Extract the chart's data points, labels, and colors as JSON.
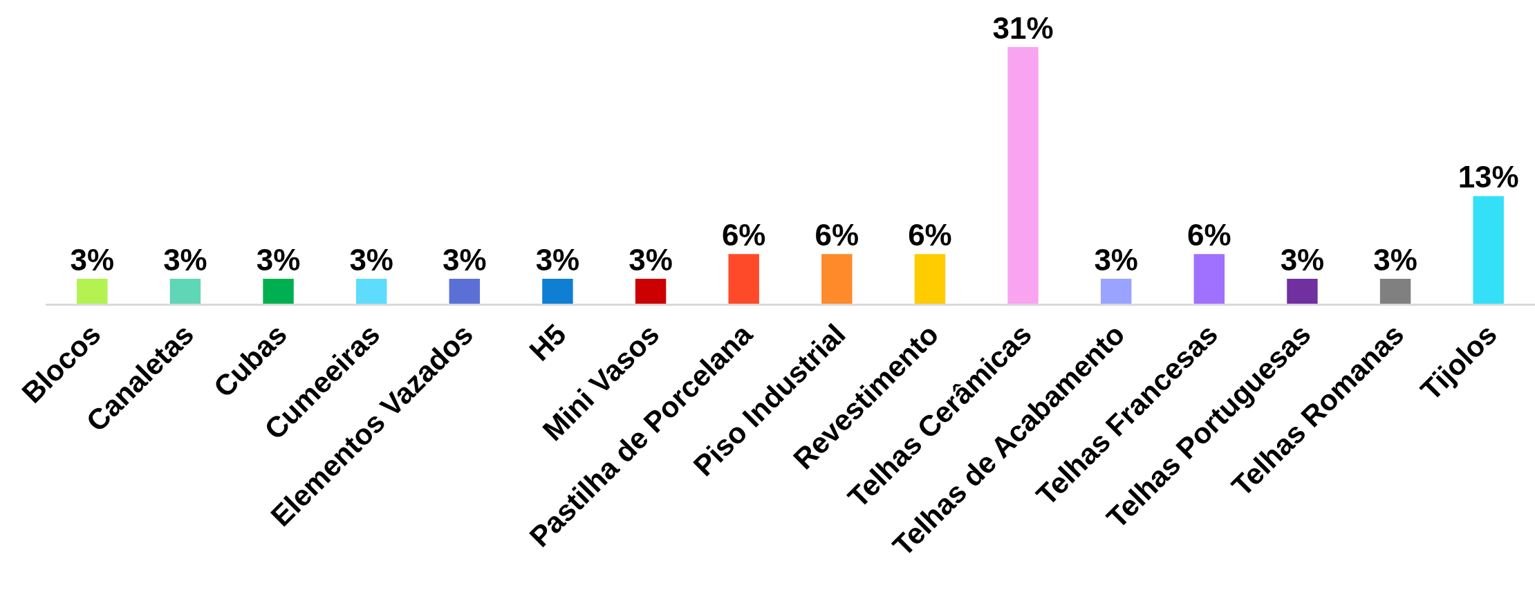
{
  "chart_data": {
    "type": "bar",
    "categories": [
      "Blocos",
      "Canaletas",
      "Cubas",
      "Cumeeiras",
      "Elementos Vazados",
      "H5",
      "Mini Vasos",
      "Pastilha de Porcelana",
      "Piso Industrial",
      "Revestimento",
      "Telhas Cerâmicas",
      "Telhas de Acabamento",
      "Telhas Francesas",
      "Telhas Portuguesas",
      "Telhas Romanas",
      "Tijolos"
    ],
    "values": [
      3,
      3,
      3,
      3,
      3,
      3,
      3,
      6,
      6,
      6,
      31,
      3,
      6,
      3,
      3,
      13
    ],
    "value_labels": [
      "3%",
      "3%",
      "3%",
      "3%",
      "3%",
      "3%",
      "3%",
      "6%",
      "6%",
      "6%",
      "31%",
      "3%",
      "6%",
      "3%",
      "3%",
      "13%"
    ],
    "colors": [
      "#b3f251",
      "#5fd6b5",
      "#00b050",
      "#5ddcfc",
      "#5b70d6",
      "#0f7fd4",
      "#cc0000",
      "#ff4a2a",
      "#ff8a2a",
      "#ffcc00",
      "#f9a4f0",
      "#9aa3ff",
      "#a070ff",
      "#7030a0",
      "#808080",
      "#33e0f8"
    ],
    "tick_labels": "x"
  }
}
